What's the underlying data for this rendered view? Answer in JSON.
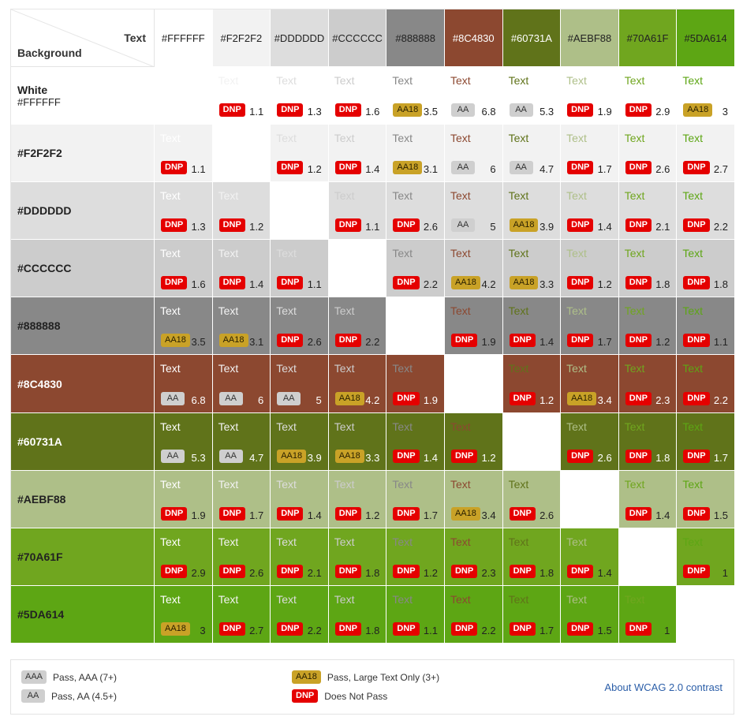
{
  "header": {
    "text_label": "Text",
    "background_label": "Background"
  },
  "colors": [
    {
      "hex": "#FFFFFF",
      "fg": "#222222"
    },
    {
      "hex": "#F2F2F2",
      "fg": "#222222"
    },
    {
      "hex": "#DDDDDD",
      "fg": "#222222"
    },
    {
      "hex": "#CCCCCC",
      "fg": "#222222"
    },
    {
      "hex": "#888888",
      "fg": "#222222"
    },
    {
      "hex": "#8C4830",
      "fg": "#ffffff"
    },
    {
      "hex": "#60731A",
      "fg": "#ffffff"
    },
    {
      "hex": "#AEBF88",
      "fg": "#222222"
    },
    {
      "hex": "#70A61F",
      "fg": "#222222"
    },
    {
      "hex": "#5DA614",
      "fg": "#222222"
    }
  ],
  "column_labels": [
    "#FFFFFF",
    "#F2F2F2",
    "#DDDDDD",
    "#CCCCCC",
    "#888888",
    "#8C4830",
    "#60731A",
    "#AEBF88",
    "#70A61F",
    "#5DA614"
  ],
  "rows": [
    {
      "name": "White",
      "sub": "#FFFFFF"
    },
    {
      "name": "#F2F2F2",
      "sub": ""
    },
    {
      "name": "#DDDDDD",
      "sub": ""
    },
    {
      "name": "#CCCCCC",
      "sub": ""
    },
    {
      "name": "#888888",
      "sub": ""
    },
    {
      "name": "#8C4830",
      "sub": ""
    },
    {
      "name": "#60731A",
      "sub": ""
    },
    {
      "name": "#AEBF88",
      "sub": ""
    },
    {
      "name": "#70A61F",
      "sub": ""
    },
    {
      "name": "#5DA614",
      "sub": ""
    }
  ],
  "sample_text": "Text",
  "cells": [
    [
      null,
      {
        "b": "DNP",
        "r": "1.1"
      },
      {
        "b": "DNP",
        "r": "1.3"
      },
      {
        "b": "DNP",
        "r": "1.6"
      },
      {
        "b": "AA18",
        "r": "3.5"
      },
      {
        "b": "AA",
        "r": "6.8"
      },
      {
        "b": "AA",
        "r": "5.3"
      },
      {
        "b": "DNP",
        "r": "1.9"
      },
      {
        "b": "DNP",
        "r": "2.9"
      },
      {
        "b": "AA18",
        "r": "3"
      }
    ],
    [
      {
        "b": "DNP",
        "r": "1.1"
      },
      null,
      {
        "b": "DNP",
        "r": "1.2"
      },
      {
        "b": "DNP",
        "r": "1.4"
      },
      {
        "b": "AA18",
        "r": "3.1"
      },
      {
        "b": "AA",
        "r": "6"
      },
      {
        "b": "AA",
        "r": "4.7"
      },
      {
        "b": "DNP",
        "r": "1.7"
      },
      {
        "b": "DNP",
        "r": "2.6"
      },
      {
        "b": "DNP",
        "r": "2.7"
      }
    ],
    [
      {
        "b": "DNP",
        "r": "1.3"
      },
      {
        "b": "DNP",
        "r": "1.2"
      },
      null,
      {
        "b": "DNP",
        "r": "1.1"
      },
      {
        "b": "DNP",
        "r": "2.6"
      },
      {
        "b": "AA",
        "r": "5"
      },
      {
        "b": "AA18",
        "r": "3.9"
      },
      {
        "b": "DNP",
        "r": "1.4"
      },
      {
        "b": "DNP",
        "r": "2.1"
      },
      {
        "b": "DNP",
        "r": "2.2"
      }
    ],
    [
      {
        "b": "DNP",
        "r": "1.6"
      },
      {
        "b": "DNP",
        "r": "1.4"
      },
      {
        "b": "DNP",
        "r": "1.1"
      },
      null,
      {
        "b": "DNP",
        "r": "2.2"
      },
      {
        "b": "AA18",
        "r": "4.2"
      },
      {
        "b": "AA18",
        "r": "3.3"
      },
      {
        "b": "DNP",
        "r": "1.2"
      },
      {
        "b": "DNP",
        "r": "1.8"
      },
      {
        "b": "DNP",
        "r": "1.8"
      }
    ],
    [
      {
        "b": "AA18",
        "r": "3.5"
      },
      {
        "b": "AA18",
        "r": "3.1"
      },
      {
        "b": "DNP",
        "r": "2.6"
      },
      {
        "b": "DNP",
        "r": "2.2"
      },
      null,
      {
        "b": "DNP",
        "r": "1.9"
      },
      {
        "b": "DNP",
        "r": "1.4"
      },
      {
        "b": "DNP",
        "r": "1.7"
      },
      {
        "b": "DNP",
        "r": "1.2"
      },
      {
        "b": "DNP",
        "r": "1.1"
      }
    ],
    [
      {
        "b": "AA",
        "r": "6.8"
      },
      {
        "b": "AA",
        "r": "6"
      },
      {
        "b": "AA",
        "r": "5"
      },
      {
        "b": "AA18",
        "r": "4.2"
      },
      {
        "b": "DNP",
        "r": "1.9"
      },
      null,
      {
        "b": "DNP",
        "r": "1.2"
      },
      {
        "b": "AA18",
        "r": "3.4"
      },
      {
        "b": "DNP",
        "r": "2.3"
      },
      {
        "b": "DNP",
        "r": "2.2"
      }
    ],
    [
      {
        "b": "AA",
        "r": "5.3"
      },
      {
        "b": "AA",
        "r": "4.7"
      },
      {
        "b": "AA18",
        "r": "3.9"
      },
      {
        "b": "AA18",
        "r": "3.3"
      },
      {
        "b": "DNP",
        "r": "1.4"
      },
      {
        "b": "DNP",
        "r": "1.2"
      },
      null,
      {
        "b": "DNP",
        "r": "2.6"
      },
      {
        "b": "DNP",
        "r": "1.8"
      },
      {
        "b": "DNP",
        "r": "1.7"
      }
    ],
    [
      {
        "b": "DNP",
        "r": "1.9"
      },
      {
        "b": "DNP",
        "r": "1.7"
      },
      {
        "b": "DNP",
        "r": "1.4"
      },
      {
        "b": "DNP",
        "r": "1.2"
      },
      {
        "b": "DNP",
        "r": "1.7"
      },
      {
        "b": "AA18",
        "r": "3.4"
      },
      {
        "b": "DNP",
        "r": "2.6"
      },
      null,
      {
        "b": "DNP",
        "r": "1.4"
      },
      {
        "b": "DNP",
        "r": "1.5"
      }
    ],
    [
      {
        "b": "DNP",
        "r": "2.9"
      },
      {
        "b": "DNP",
        "r": "2.6"
      },
      {
        "b": "DNP",
        "r": "2.1"
      },
      {
        "b": "DNP",
        "r": "1.8"
      },
      {
        "b": "DNP",
        "r": "1.2"
      },
      {
        "b": "DNP",
        "r": "2.3"
      },
      {
        "b": "DNP",
        "r": "1.8"
      },
      {
        "b": "DNP",
        "r": "1.4"
      },
      null,
      {
        "b": "DNP",
        "r": "1"
      }
    ],
    [
      {
        "b": "AA18",
        "r": "3"
      },
      {
        "b": "DNP",
        "r": "2.7"
      },
      {
        "b": "DNP",
        "r": "2.2"
      },
      {
        "b": "DNP",
        "r": "1.8"
      },
      {
        "b": "DNP",
        "r": "1.1"
      },
      {
        "b": "DNP",
        "r": "2.2"
      },
      {
        "b": "DNP",
        "r": "1.7"
      },
      {
        "b": "DNP",
        "r": "1.5"
      },
      {
        "b": "DNP",
        "r": "1"
      },
      null
    ]
  ],
  "legend": {
    "aaa_badge": "AAA",
    "aaa_label": "Pass, AAA (7+)",
    "aa_badge": "AA",
    "aa_label": "Pass, AA (4.5+)",
    "aa18_badge": "AA18",
    "aa18_label": "Pass, Large Text Only (3+)",
    "dnp_badge": "DNP",
    "dnp_label": "Does Not Pass",
    "link": "About WCAG 2.0 contrast"
  }
}
